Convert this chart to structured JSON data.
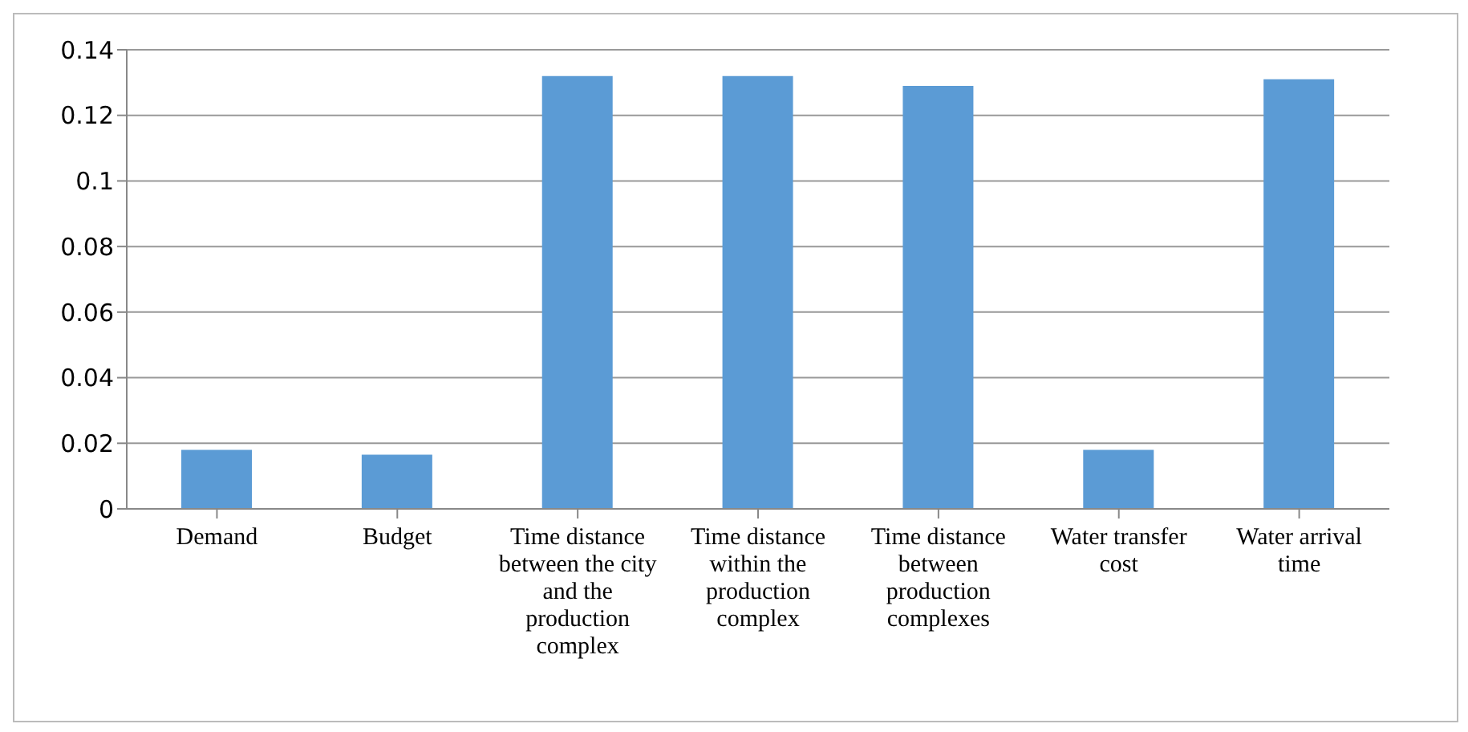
{
  "chart_data": {
    "type": "bar",
    "categories": [
      "Demand",
      "Budget",
      "Time distance between the city and the production complex",
      "Time distance within the production complex",
      "Time distance between production complexes",
      "Water transfer cost",
      "Water arrival time"
    ],
    "values": [
      0.018,
      0.0165,
      0.132,
      0.132,
      0.129,
      0.018,
      0.131
    ],
    "color": "#5b9bd5",
    "ylim": [
      0,
      0.14
    ],
    "yticks": [
      0,
      0.02,
      0.04,
      0.06,
      0.08,
      0.1,
      0.12,
      0.14
    ],
    "grid": "y",
    "legend": false
  }
}
